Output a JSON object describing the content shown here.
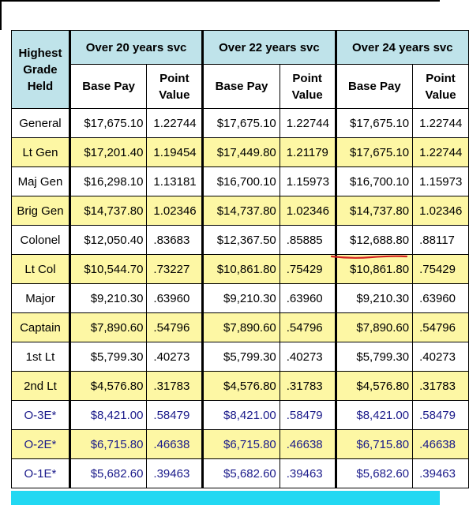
{
  "header": {
    "grade_lines": [
      "Highest",
      "Grade",
      "Held"
    ],
    "groups": [
      "Over 20 years svc",
      "Over 22 years svc",
      "Over 24 years svc"
    ],
    "base_pay_label": "Base Pay",
    "point_value_lines": [
      "Point",
      "Value"
    ]
  },
  "rows": [
    {
      "grade": "General",
      "style": "white",
      "pay": [
        "$17,675.10",
        "$17,675.10",
        "$17,675.10"
      ],
      "pt": [
        "1.22744",
        "1.22744",
        "1.22744"
      ]
    },
    {
      "grade": "Lt Gen",
      "style": "yellow",
      "pay": [
        "$17,201.40",
        "$17,449.80",
        "$17,675.10"
      ],
      "pt": [
        "1.19454",
        "1.21179",
        "1.22744"
      ]
    },
    {
      "grade": "Maj Gen",
      "style": "white",
      "pay": [
        "$16,298.10",
        "$16,700.10",
        "$16,700.10"
      ],
      "pt": [
        "1.13181",
        "1.15973",
        "1.15973"
      ]
    },
    {
      "grade": "Brig Gen",
      "style": "yellow",
      "pay": [
        "$14,737.80",
        "$14,737.80",
        "$14,737.80"
      ],
      "pt": [
        "1.02346",
        "1.02346",
        "1.02346"
      ]
    },
    {
      "grade": "Colonel",
      "style": "white",
      "pay": [
        "$12,050.40",
        "$12,367.50",
        "$12,688.80"
      ],
      "pt": [
        ".83683",
        ".85885",
        ".88117"
      ]
    },
    {
      "grade": "Lt Col",
      "style": "yellow",
      "pay": [
        "$10,544.70",
        "$10,861.80",
        "$10,861.80"
      ],
      "pt": [
        ".73227",
        ".75429",
        ".75429"
      ]
    },
    {
      "grade": "Major",
      "style": "white",
      "pay": [
        "$9,210.30",
        "$9,210.30",
        "$9,210.30"
      ],
      "pt": [
        ".63960",
        ".63960",
        ".63960"
      ]
    },
    {
      "grade": "Captain",
      "style": "yellow",
      "pay": [
        "$7,890.60",
        "$7,890.60",
        "$7,890.60"
      ],
      "pt": [
        ".54796",
        ".54796",
        ".54796"
      ]
    },
    {
      "grade": "1st Lt",
      "style": "white",
      "pay": [
        "$5,799.30",
        "$5,799.30",
        "$5,799.30"
      ],
      "pt": [
        ".40273",
        ".40273",
        ".40273"
      ]
    },
    {
      "grade": "2nd Lt",
      "style": "yellow",
      "pay": [
        "$4,576.80",
        "$4,576.80",
        "$4,576.80"
      ],
      "pt": [
        ".31783",
        ".31783",
        ".31783"
      ]
    },
    {
      "grade": "O-3E*",
      "style": "white navy",
      "pay": [
        "$8,421.00",
        "$8,421.00",
        "$8,421.00"
      ],
      "pt": [
        ".58479",
        ".58479",
        ".58479"
      ]
    },
    {
      "grade": "O-2E*",
      "style": "yellow navy",
      "pay": [
        "$6,715.80",
        "$6,715.80",
        "$6,715.80"
      ],
      "pt": [
        ".46638",
        ".46638",
        ".46638"
      ]
    },
    {
      "grade": "O-1E*",
      "style": "white navy",
      "pay": [
        "$5,682.60",
        "$5,682.60",
        "$5,682.60"
      ],
      "pt": [
        ".39463",
        ".39463",
        ".39463"
      ]
    }
  ],
  "colors": {
    "header_fill": "#bfe3ea",
    "stripe_fill": "#fdf7a4",
    "bottom_band": "#22d8f2",
    "annotation": "#d42020",
    "navy_text": "#1a1a8a"
  }
}
